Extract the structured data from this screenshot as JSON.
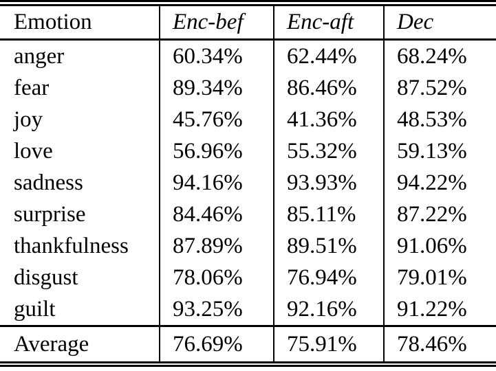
{
  "table": {
    "columns": [
      "Emotion",
      "Enc-bef",
      "Enc-aft",
      "Dec"
    ],
    "rows": [
      {
        "emotion": "anger",
        "values": [
          "60.34%",
          "62.44%",
          "68.24%"
        ]
      },
      {
        "emotion": "fear",
        "values": [
          "89.34%",
          "86.46%",
          "87.52%"
        ]
      },
      {
        "emotion": "joy",
        "values": [
          "45.76%",
          "41.36%",
          "48.53%"
        ]
      },
      {
        "emotion": "love",
        "values": [
          "56.96%",
          "55.32%",
          "59.13%"
        ]
      },
      {
        "emotion": "sadness",
        "values": [
          "94.16%",
          "93.93%",
          "94.22%"
        ]
      },
      {
        "emotion": "surprise",
        "values": [
          "84.46%",
          "85.11%",
          "87.22%"
        ]
      },
      {
        "emotion": "thankfulness",
        "values": [
          "87.89%",
          "89.51%",
          "91.06%"
        ]
      },
      {
        "emotion": "disgust",
        "values": [
          "78.06%",
          "76.94%",
          "79.01%"
        ]
      },
      {
        "emotion": "guilt",
        "values": [
          "93.25%",
          "92.16%",
          "91.22%"
        ]
      }
    ],
    "footer": {
      "label": "Average",
      "values": [
        "76.69%",
        "75.91%",
        "78.46%"
      ]
    },
    "colors": {
      "text": "#000000",
      "background": "#ffffff",
      "rule": "#000000"
    }
  },
  "chart_data": {
    "type": "table",
    "title": "",
    "categories": [
      "anger",
      "fear",
      "joy",
      "love",
      "sadness",
      "surprise",
      "thankfulness",
      "disgust",
      "guilt",
      "Average"
    ],
    "series": [
      {
        "name": "Enc-bef",
        "values": [
          60.34,
          89.34,
          45.76,
          56.96,
          94.16,
          84.46,
          87.89,
          78.06,
          93.25,
          76.69
        ]
      },
      {
        "name": "Enc-aft",
        "values": [
          62.44,
          86.46,
          41.36,
          55.32,
          93.93,
          85.11,
          89.51,
          76.94,
          92.16,
          75.91
        ]
      },
      {
        "name": "Dec",
        "values": [
          68.24,
          87.52,
          48.53,
          59.13,
          94.22,
          87.22,
          91.06,
          79.01,
          91.22,
          78.46
        ]
      }
    ],
    "unit": "%"
  }
}
